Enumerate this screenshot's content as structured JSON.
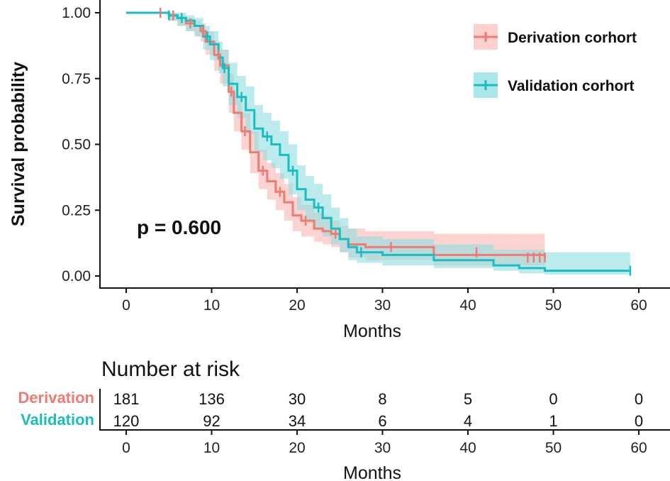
{
  "chart_data": {
    "type": "line",
    "subtype": "kaplan-meier",
    "xlabel": "Months",
    "ylabel": "Survival probability",
    "xlim": [
      0,
      60
    ],
    "ylim": [
      0,
      1
    ],
    "x_ticks": [
      0,
      10,
      20,
      30,
      40,
      50,
      60
    ],
    "y_ticks": [
      "0.00",
      "0.25",
      "0.50",
      "0.75",
      "1.00"
    ],
    "grid": false,
    "legend_position": "top-right",
    "annotation": "p = 0.600",
    "series": [
      {
        "name": "Derivation corhort",
        "color": "#F07B72",
        "band_color": "#F8A9A4",
        "steps": [
          [
            0,
            1.0
          ],
          [
            5,
            0.99
          ],
          [
            6,
            0.98
          ],
          [
            7,
            0.96
          ],
          [
            8,
            0.95
          ],
          [
            8.7,
            0.93
          ],
          [
            9.3,
            0.89
          ],
          [
            10.3,
            0.84
          ],
          [
            11,
            0.8
          ],
          [
            12,
            0.7
          ],
          [
            12.6,
            0.62
          ],
          [
            13.5,
            0.55
          ],
          [
            14.5,
            0.47
          ],
          [
            15.5,
            0.4
          ],
          [
            16.5,
            0.36
          ],
          [
            17.5,
            0.32
          ],
          [
            18.5,
            0.28
          ],
          [
            19.5,
            0.23
          ],
          [
            20.5,
            0.21
          ],
          [
            22,
            0.18
          ],
          [
            23,
            0.17
          ],
          [
            24,
            0.16
          ],
          [
            25,
            0.14
          ],
          [
            26,
            0.12
          ],
          [
            28,
            0.11
          ],
          [
            31,
            0.11
          ],
          [
            36,
            0.08
          ],
          [
            49,
            0.07
          ]
        ],
        "upper": [
          [
            0,
            1.0
          ],
          [
            5,
            1.0
          ],
          [
            6,
            0.99
          ],
          [
            7,
            0.98
          ],
          [
            8,
            0.97
          ],
          [
            8.7,
            0.96
          ],
          [
            9.3,
            0.93
          ],
          [
            10.3,
            0.89
          ],
          [
            11,
            0.86
          ],
          [
            12,
            0.77
          ],
          [
            12.6,
            0.69
          ],
          [
            13.5,
            0.62
          ],
          [
            14.5,
            0.55
          ],
          [
            15.5,
            0.48
          ],
          [
            16.5,
            0.43
          ],
          [
            17.5,
            0.39
          ],
          [
            18.5,
            0.35
          ],
          [
            19.5,
            0.3
          ],
          [
            20.5,
            0.27
          ],
          [
            22,
            0.24
          ],
          [
            23,
            0.23
          ],
          [
            24,
            0.21
          ],
          [
            25,
            0.19
          ],
          [
            26,
            0.18
          ],
          [
            28,
            0.17
          ],
          [
            31,
            0.17
          ],
          [
            36,
            0.16
          ],
          [
            49,
            0.16
          ]
        ],
        "lower": [
          [
            0,
            1.0
          ],
          [
            5,
            0.97
          ],
          [
            6,
            0.95
          ],
          [
            7,
            0.93
          ],
          [
            8,
            0.91
          ],
          [
            8.7,
            0.89
          ],
          [
            9.3,
            0.84
          ],
          [
            10.3,
            0.78
          ],
          [
            11,
            0.73
          ],
          [
            12,
            0.62
          ],
          [
            12.6,
            0.55
          ],
          [
            13.5,
            0.48
          ],
          [
            14.5,
            0.39
          ],
          [
            15.5,
            0.33
          ],
          [
            16.5,
            0.29
          ],
          [
            17.5,
            0.25
          ],
          [
            18.5,
            0.21
          ],
          [
            19.5,
            0.17
          ],
          [
            20.5,
            0.15
          ],
          [
            22,
            0.13
          ],
          [
            23,
            0.12
          ],
          [
            24,
            0.11
          ],
          [
            25,
            0.09
          ],
          [
            26,
            0.07
          ],
          [
            28,
            0.06
          ],
          [
            31,
            0.06
          ],
          [
            36,
            0.04
          ],
          [
            49,
            0.03
          ]
        ],
        "censored": [
          [
            4,
            1.0
          ],
          [
            5.5,
            0.99
          ],
          [
            7.5,
            0.96
          ],
          [
            9,
            0.93
          ],
          [
            10.8,
            0.84
          ],
          [
            12.3,
            0.7
          ],
          [
            13.9,
            0.55
          ],
          [
            16,
            0.4
          ],
          [
            18,
            0.32
          ],
          [
            21,
            0.21
          ],
          [
            24.5,
            0.16
          ],
          [
            31,
            0.11
          ],
          [
            41,
            0.09
          ],
          [
            47,
            0.07
          ],
          [
            47.7,
            0.07
          ],
          [
            48.4,
            0.07
          ],
          [
            49,
            0.07
          ]
        ]
      },
      {
        "name": "Validation corhort",
        "color": "#19BDC2",
        "band_color": "#8FDDE1",
        "steps": [
          [
            0,
            1.0
          ],
          [
            5,
            0.99
          ],
          [
            6,
            0.98
          ],
          [
            7,
            0.97
          ],
          [
            8,
            0.95
          ],
          [
            9,
            0.91
          ],
          [
            9.8,
            0.88
          ],
          [
            10.8,
            0.83
          ],
          [
            11.3,
            0.79
          ],
          [
            12,
            0.73
          ],
          [
            13,
            0.68
          ],
          [
            14,
            0.63
          ],
          [
            15,
            0.56
          ],
          [
            16,
            0.53
          ],
          [
            17,
            0.5
          ],
          [
            18,
            0.46
          ],
          [
            19,
            0.4
          ],
          [
            20,
            0.33
          ],
          [
            21,
            0.29
          ],
          [
            22,
            0.26
          ],
          [
            23,
            0.22
          ],
          [
            24,
            0.18
          ],
          [
            25,
            0.14
          ],
          [
            26,
            0.11
          ],
          [
            27,
            0.09
          ],
          [
            30,
            0.08
          ],
          [
            36,
            0.06
          ],
          [
            43,
            0.04
          ],
          [
            46,
            0.03
          ],
          [
            49,
            0.02
          ],
          [
            59,
            0.02
          ]
        ],
        "upper": [
          [
            0,
            1.0
          ],
          [
            5,
            1.0
          ],
          [
            6,
            1.0
          ],
          [
            7,
            0.99
          ],
          [
            8,
            0.98
          ],
          [
            9,
            0.95
          ],
          [
            9.8,
            0.93
          ],
          [
            10.8,
            0.89
          ],
          [
            11.3,
            0.86
          ],
          [
            12,
            0.81
          ],
          [
            13,
            0.76
          ],
          [
            14,
            0.72
          ],
          [
            15,
            0.65
          ],
          [
            16,
            0.62
          ],
          [
            17,
            0.59
          ],
          [
            18,
            0.55
          ],
          [
            19,
            0.5
          ],
          [
            20,
            0.42
          ],
          [
            21,
            0.38
          ],
          [
            22,
            0.35
          ],
          [
            23,
            0.31
          ],
          [
            24,
            0.26
          ],
          [
            25,
            0.22
          ],
          [
            26,
            0.18
          ],
          [
            27,
            0.15
          ],
          [
            30,
            0.14
          ],
          [
            36,
            0.12
          ],
          [
            43,
            0.1
          ],
          [
            46,
            0.1
          ],
          [
            49,
            0.09
          ],
          [
            59,
            0.09
          ]
        ],
        "lower": [
          [
            0,
            1.0
          ],
          [
            5,
            0.97
          ],
          [
            6,
            0.95
          ],
          [
            7,
            0.93
          ],
          [
            8,
            0.91
          ],
          [
            9,
            0.86
          ],
          [
            9.8,
            0.82
          ],
          [
            10.8,
            0.77
          ],
          [
            11.3,
            0.72
          ],
          [
            12,
            0.65
          ],
          [
            13,
            0.6
          ],
          [
            14,
            0.54
          ],
          [
            15,
            0.47
          ],
          [
            16,
            0.44
          ],
          [
            17,
            0.41
          ],
          [
            18,
            0.37
          ],
          [
            19,
            0.31
          ],
          [
            20,
            0.25
          ],
          [
            21,
            0.21
          ],
          [
            22,
            0.18
          ],
          [
            23,
            0.15
          ],
          [
            24,
            0.12
          ],
          [
            25,
            0.09
          ],
          [
            26,
            0.06
          ],
          [
            27,
            0.05
          ],
          [
            30,
            0.04
          ],
          [
            36,
            0.03
          ],
          [
            43,
            0.02
          ],
          [
            46,
            0.01
          ],
          [
            49,
            0.005
          ],
          [
            59,
            0.005
          ]
        ],
        "censored": [
          [
            5,
            0.99
          ],
          [
            6.5,
            0.98
          ],
          [
            9.5,
            0.91
          ],
          [
            11.5,
            0.79
          ],
          [
            13.5,
            0.68
          ],
          [
            16.5,
            0.53
          ],
          [
            19.5,
            0.4
          ],
          [
            22.5,
            0.26
          ],
          [
            27.5,
            0.09
          ],
          [
            59,
            0.02
          ]
        ]
      }
    ]
  },
  "risk_table": {
    "title": "Number at risk",
    "xlabel": "Months",
    "times": [
      0,
      10,
      20,
      30,
      40,
      50,
      60
    ],
    "rows": [
      {
        "label": "Derivation",
        "color": "#F07B72",
        "values": [
          "181",
          "136",
          "30",
          "8",
          "5",
          "0",
          "0"
        ]
      },
      {
        "label": "Validation",
        "color": "#19BDC2",
        "values": [
          "120",
          "92",
          "34",
          "6",
          "4",
          "1",
          "0"
        ]
      }
    ]
  }
}
